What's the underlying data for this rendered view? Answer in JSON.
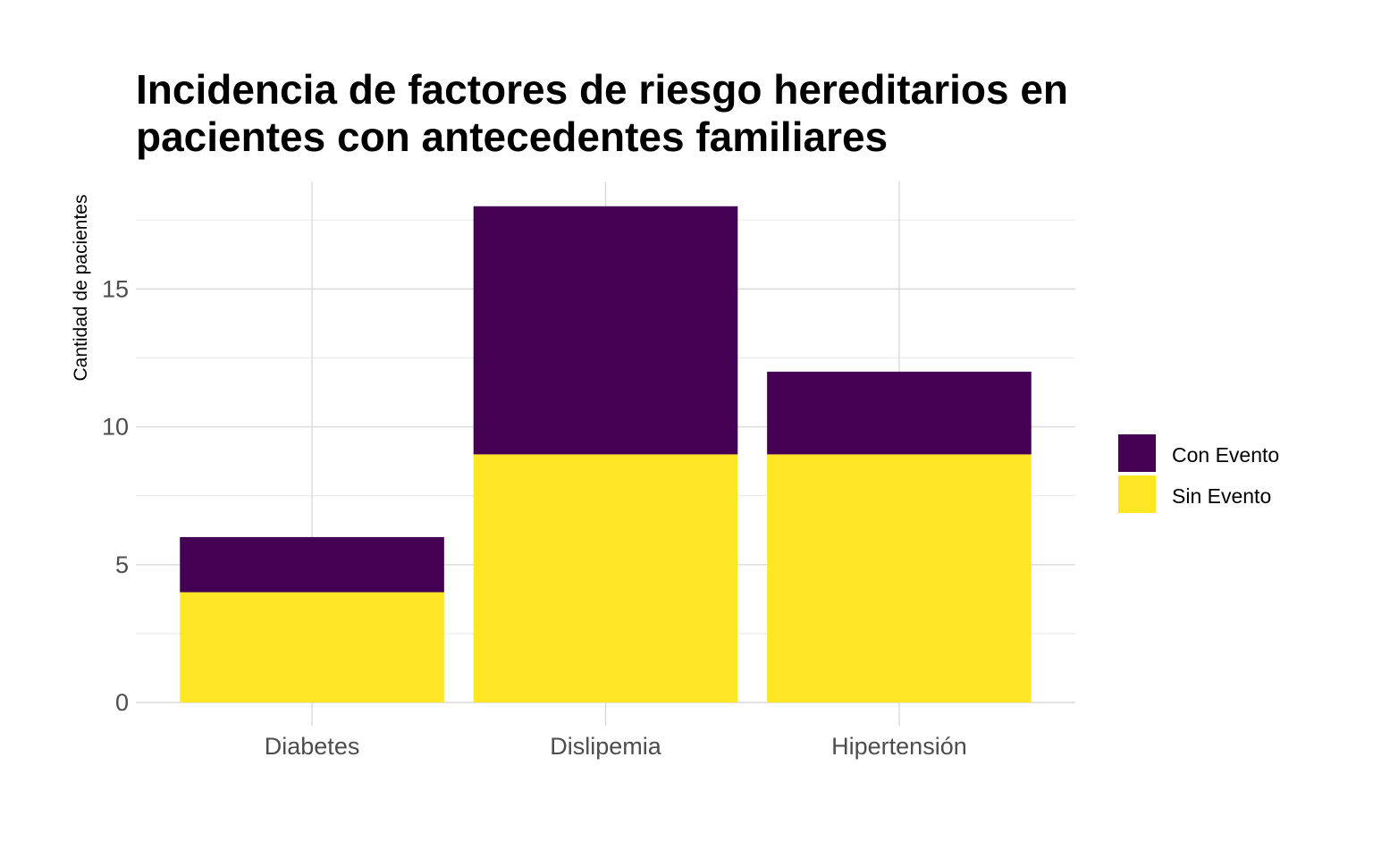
{
  "chart_data": {
    "type": "bar",
    "stacked": true,
    "title": "Incidencia de factores de riesgo hereditarios en pacientes con antecedentes familiares",
    "xlabel": "",
    "ylabel": "Cantidad de pacientes",
    "categories": [
      "Diabetes",
      "Dislipemia",
      "Hipertensión"
    ],
    "series": [
      {
        "name": "Sin Evento",
        "values": [
          4,
          9,
          9
        ],
        "color": "#fde725"
      },
      {
        "name": "Con Evento",
        "values": [
          2,
          9,
          3
        ],
        "color": "#440154"
      }
    ],
    "legend_order": [
      "Con Evento",
      "Sin Evento"
    ],
    "ylim": [
      0,
      18
    ],
    "yticks": [
      0,
      5,
      10,
      15
    ],
    "grid": true,
    "legend_position": "right"
  }
}
